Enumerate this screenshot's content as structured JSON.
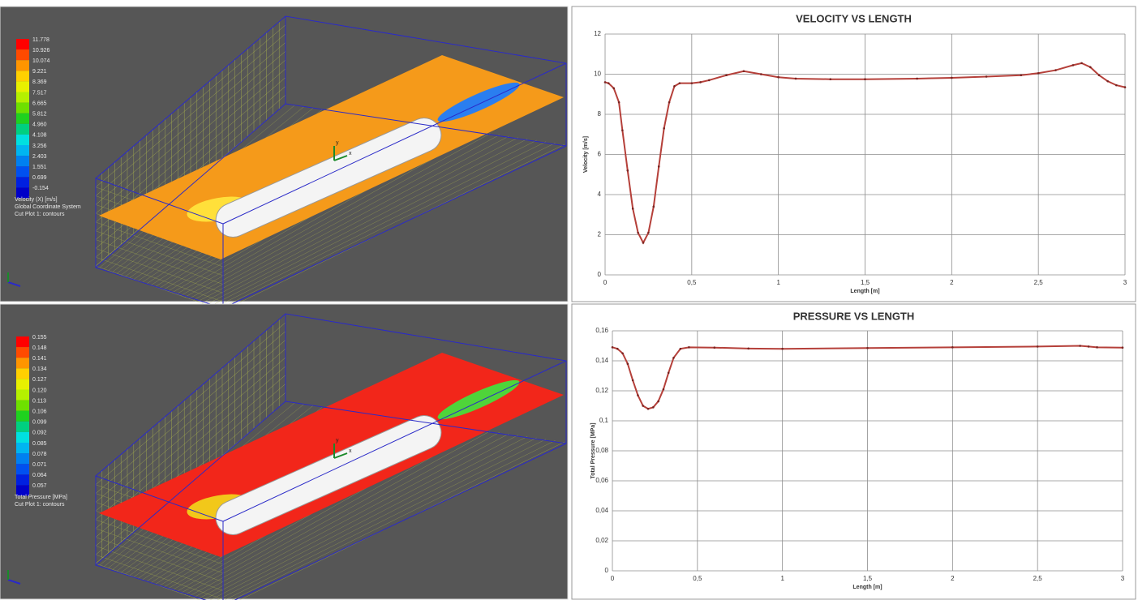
{
  "chart_data": [
    {
      "type": "line",
      "title": "VELOCITY VS LENGTH",
      "xlabel": "Length [m]",
      "ylabel": "Velocity [m/s]",
      "color": "#b5403a",
      "grid": true,
      "x": [
        0,
        0.02,
        0.05,
        0.08,
        0.1,
        0.13,
        0.16,
        0.19,
        0.22,
        0.25,
        0.28,
        0.31,
        0.34,
        0.37,
        0.4,
        0.43,
        0.5,
        0.55,
        0.6,
        0.7,
        0.8,
        0.9,
        1.0,
        1.1,
        1.3,
        1.5,
        1.8,
        2.0,
        2.2,
        2.4,
        2.5,
        2.6,
        2.7,
        2.75,
        2.8,
        2.85,
        2.9,
        2.95,
        3.0
      ],
      "values": [
        9.6,
        9.55,
        9.3,
        8.6,
        7.2,
        5.2,
        3.3,
        2.1,
        1.6,
        2.1,
        3.4,
        5.4,
        7.3,
        8.6,
        9.4,
        9.55,
        9.55,
        9.6,
        9.7,
        9.95,
        10.15,
        10.0,
        9.85,
        9.78,
        9.75,
        9.75,
        9.78,
        9.82,
        9.88,
        9.95,
        10.05,
        10.2,
        10.45,
        10.55,
        10.35,
        9.95,
        9.65,
        9.45,
        9.35
      ],
      "xlim": [
        0,
        3
      ],
      "xticks": [
        0,
        {
          "value": 0.5,
          "label": "0,5"
        },
        1,
        {
          "value": 1.5,
          "label": "1,5"
        },
        2,
        {
          "value": 2.5,
          "label": "2,5"
        },
        3
      ],
      "ylim": [
        0,
        12
      ],
      "yticks": [
        0,
        2,
        4,
        6,
        8,
        10,
        12
      ]
    },
    {
      "type": "line",
      "title": "PRESSURE VS LENGTH",
      "xlabel": "Length [m]",
      "ylabel": "Total Pressure [MPa]",
      "color": "#b5403a",
      "grid": true,
      "x": [
        0,
        0.03,
        0.06,
        0.09,
        0.12,
        0.15,
        0.18,
        0.21,
        0.24,
        0.27,
        0.3,
        0.33,
        0.36,
        0.4,
        0.45,
        0.6,
        0.8,
        1.0,
        1.5,
        2.0,
        2.5,
        2.75,
        2.8,
        2.85,
        3.0
      ],
      "values": [
        0.149,
        0.148,
        0.145,
        0.138,
        0.127,
        0.117,
        0.11,
        0.108,
        0.109,
        0.113,
        0.121,
        0.132,
        0.142,
        0.148,
        0.149,
        0.1488,
        0.1482,
        0.148,
        0.1485,
        0.149,
        0.1495,
        0.15,
        0.1495,
        0.149,
        0.1488
      ],
      "xlim": [
        0,
        3
      ],
      "xticks": [
        0,
        {
          "value": 0.5,
          "label": "0,5"
        },
        1,
        {
          "value": 1.5,
          "label": "1,5"
        },
        2,
        {
          "value": 2.5,
          "label": "2,5"
        },
        3
      ],
      "ylim": [
        0,
        0.16
      ],
      "yticks": [
        0,
        {
          "value": 0.02,
          "label": "0,02"
        },
        {
          "value": 0.04,
          "label": "0,04"
        },
        {
          "value": 0.06,
          "label": "0,06"
        },
        {
          "value": 0.08,
          "label": "0,08"
        },
        {
          "value": 0.1,
          "label": "0,1"
        },
        {
          "value": 0.12,
          "label": "0,12"
        },
        {
          "value": 0.14,
          "label": "0,14"
        },
        {
          "value": 0.16,
          "label": "0,16"
        }
      ]
    }
  ],
  "cfd_panels": [
    {
      "legend_labels": [
        "11.778",
        "10.926",
        "10.074",
        "9.221",
        "8.369",
        "7.517",
        "6.665",
        "5.812",
        "4.960",
        "4.108",
        "3.256",
        "2.403",
        "1.551",
        "0.699",
        "-0.154"
      ],
      "captions": [
        "Velocity (X) [m/s]",
        "Global Coordinate System",
        "Cut Plot 1: contours"
      ],
      "plane_color": "#f59a1a",
      "triad": [
        "y",
        "x"
      ]
    },
    {
      "legend_labels": [
        "0.155",
        "0.148",
        "0.141",
        "0.134",
        "0.127",
        "0.120",
        "0.113",
        "0.106",
        "0.099",
        "0.092",
        "0.085",
        "0.078",
        "0.071",
        "0.064",
        "0.057"
      ],
      "captions": [
        "Total Pressure [MPa]",
        "Cut Plot 1: contours"
      ],
      "plane_color": "#f2261a",
      "triad": [
        "y",
        "x"
      ]
    }
  ]
}
